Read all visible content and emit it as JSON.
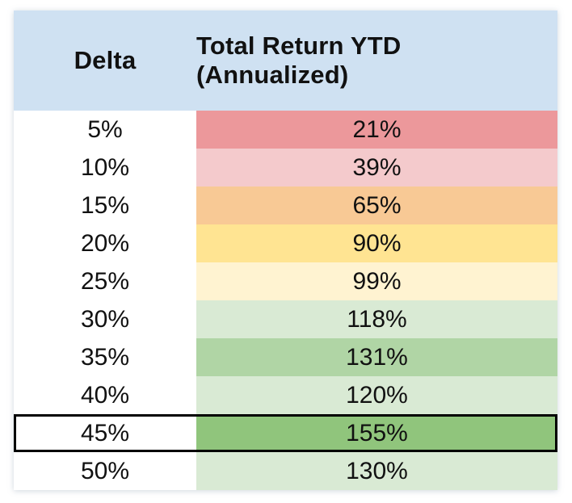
{
  "table": {
    "header_bg": "#CFE1F2",
    "highlight_border": "#000000",
    "columns": [
      {
        "label": "Delta"
      },
      {
        "label": "Total Return YTD (Annualized)"
      }
    ],
    "rows": [
      {
        "delta": "5%",
        "return": "21%",
        "color": "#EC989B",
        "highlighted": false
      },
      {
        "delta": "10%",
        "return": "39%",
        "color": "#F4CACC",
        "highlighted": false
      },
      {
        "delta": "15%",
        "return": "65%",
        "color": "#F8C995",
        "highlighted": false
      },
      {
        "delta": "20%",
        "return": "90%",
        "color": "#FFE492",
        "highlighted": false
      },
      {
        "delta": "25%",
        "return": "99%",
        "color": "#FFF3D1",
        "highlighted": false
      },
      {
        "delta": "30%",
        "return": "118%",
        "color": "#D9EAD4",
        "highlighted": false
      },
      {
        "delta": "35%",
        "return": "131%",
        "color": "#B0D5A5",
        "highlighted": false
      },
      {
        "delta": "40%",
        "return": "120%",
        "color": "#D9EAD4",
        "highlighted": false
      },
      {
        "delta": "45%",
        "return": "155%",
        "color": "#90C57C",
        "highlighted": true
      },
      {
        "delta": "50%",
        "return": "130%",
        "color": "#D9EAD4",
        "highlighted": false
      }
    ]
  },
  "chart_data": {
    "type": "table",
    "title": "",
    "columns": [
      "Delta",
      "Total Return YTD (Annualized)"
    ],
    "rows": [
      [
        "5%",
        "21%"
      ],
      [
        "10%",
        "39%"
      ],
      [
        "15%",
        "65%"
      ],
      [
        "20%",
        "90%"
      ],
      [
        "25%",
        "99%"
      ],
      [
        "30%",
        "118%"
      ],
      [
        "35%",
        "131%"
      ],
      [
        "40%",
        "120%"
      ],
      [
        "45%",
        "155%"
      ],
      [
        "50%",
        "130%"
      ]
    ],
    "delta_values_pct": [
      5,
      10,
      15,
      20,
      25,
      30,
      35,
      40,
      45,
      50
    ],
    "return_values_pct": [
      21,
      39,
      65,
      90,
      99,
      118,
      131,
      120,
      155,
      130
    ],
    "highlighted_row": {
      "delta": "45%",
      "return": "155%"
    },
    "color_scale": "red-yellow-green by return value"
  }
}
